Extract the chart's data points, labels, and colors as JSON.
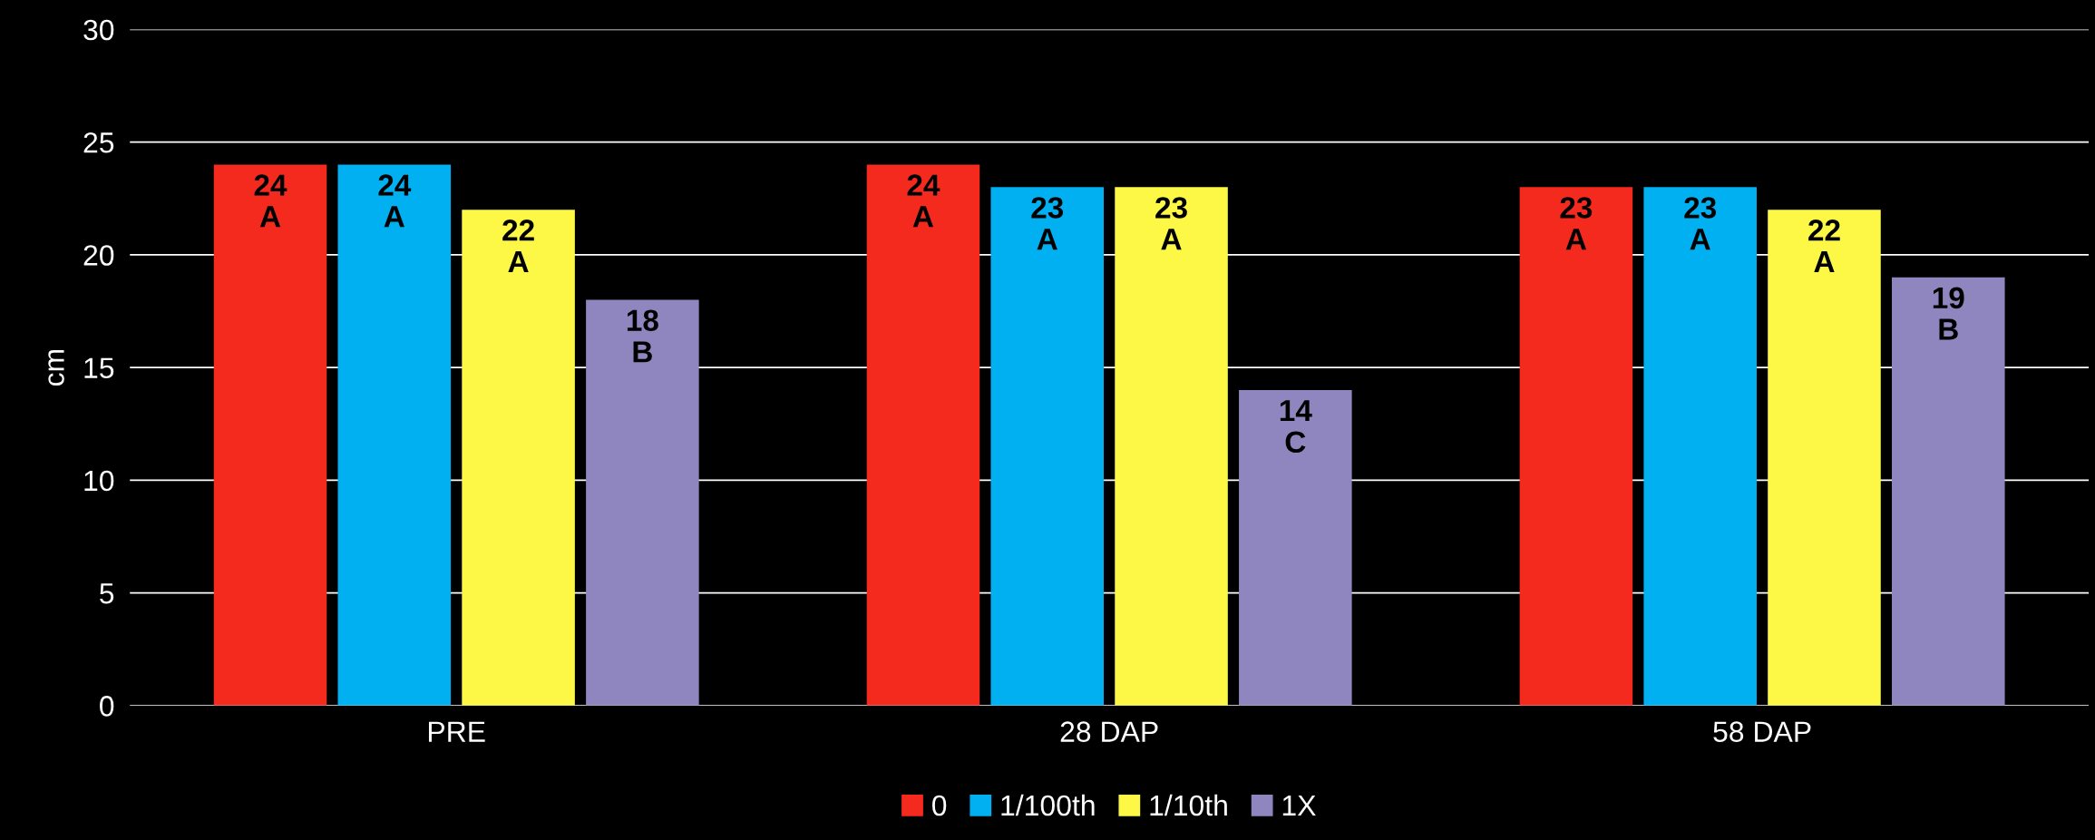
{
  "chart_data": {
    "type": "bar",
    "ylabel": "cm",
    "categories": [
      "PRE",
      "28 DAP",
      "58 DAP"
    ],
    "series": [
      {
        "name": "0",
        "color": "#f52a1e",
        "values": [
          24,
          24,
          23
        ],
        "value_labels": [
          "24\nA",
          "24\nA",
          "23\nA"
        ]
      },
      {
        "name": "1/100th",
        "color": "#00b0f0",
        "values": [
          24,
          23,
          23
        ],
        "value_labels": [
          "24\nA",
          "23\nA",
          "23\nA"
        ]
      },
      {
        "name": "1/10th",
        "color": "#fdf845",
        "values": [
          22,
          23,
          22
        ],
        "value_labels": [
          "22\nA",
          "23\nA",
          "22\nA"
        ]
      },
      {
        "name": "1X",
        "color": "#8f86bf",
        "values": [
          18,
          14,
          19
        ],
        "value_labels": [
          "18\nB",
          "14\nC",
          "19\nB"
        ]
      }
    ],
    "ylim": [
      0,
      30
    ],
    "yticks": [
      0,
      5,
      10,
      15,
      20,
      25,
      30
    ],
    "grid": "y",
    "legend": "bottom"
  }
}
